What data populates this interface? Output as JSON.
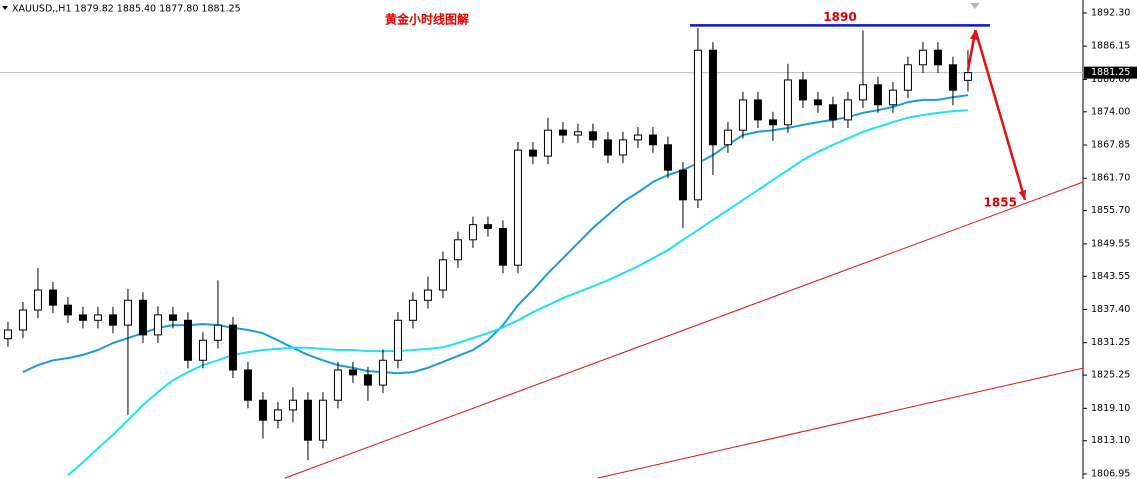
{
  "chart_data": {
    "type": "candlestick",
    "title": "黄金小时线图解",
    "header": "XAUUSD,,H1  1879.82 1885.40 1877.80 1881.25",
    "xlim": [
      -0.53,
      71.67
    ],
    "ylim": [
      1806.2,
      1894.7
    ],
    "yticks": [
      {
        "value": 1892.3,
        "label": "1892.30"
      },
      {
        "value": 1886.15,
        "label": "1886.15"
      },
      {
        "value": 1880,
        "label": "1880.00"
      },
      {
        "value": 1874,
        "label": "1874.00"
      },
      {
        "value": 1867.85,
        "label": "1867.85"
      },
      {
        "value": 1861.7,
        "label": "1861.70"
      },
      {
        "value": 1855.7,
        "label": "1855.70"
      },
      {
        "value": 1849.55,
        "label": "1849.55"
      },
      {
        "value": 1843.55,
        "label": "1843.55"
      },
      {
        "value": 1837.4,
        "label": "1837.40"
      },
      {
        "value": 1831.25,
        "label": "1831.25"
      },
      {
        "value": 1825.25,
        "label": "1825.25"
      },
      {
        "value": 1819.1,
        "label": "1819.10"
      },
      {
        "value": 1813.1,
        "label": "1813.10"
      },
      {
        "value": 1806.95,
        "label": "1806.95"
      }
    ],
    "last_price": 1881.25,
    "open": [
      1832.0,
      1833.6,
      1837.3,
      1841.0,
      1838.2,
      1836.4,
      1835.4,
      1836.4,
      1834.5,
      1839.1,
      1832.7,
      1836.4,
      1835.4,
      1828.0,
      1831.7,
      1834.5,
      1826.2,
      1820.6,
      1816.9,
      1818.8,
      1820.6,
      1813.2,
      1820.6,
      1826.2,
      1825.3,
      1823.4,
      1828.0,
      1835.4,
      1839.1,
      1841.0,
      1846.6,
      1850.3,
      1853.1,
      1852.4,
      1845.6,
      1866.9,
      1865.8,
      1870.6,
      1869.7,
      1870.3,
      1868.8,
      1866.0,
      1868.8,
      1869.7,
      1867.9,
      1863.2,
      1857.7,
      1885.4,
      1867.9,
      1870.6,
      1876.2,
      1872.5,
      1871.6,
      1879.9,
      1876.2,
      1875.3,
      1872.5,
      1876.2,
      1879.0,
      1875.3,
      1878.0,
      1882.7,
      1885.4,
      1882.7,
      1879.82
    ],
    "high": [
      1835.1,
      1838.8,
      1845.1,
      1842.5,
      1839.7,
      1837.9,
      1837.9,
      1837.9,
      1841.2,
      1840.6,
      1838.0,
      1837.9,
      1836.9,
      1833.2,
      1842.8,
      1836.0,
      1827.7,
      1822.1,
      1820.3,
      1823.0,
      1822.1,
      1822.1,
      1827.7,
      1827.7,
      1826.8,
      1830.0,
      1836.9,
      1840.6,
      1843.5,
      1848.1,
      1851.8,
      1854.6,
      1854.6,
      1853.9,
      1868.4,
      1868.4,
      1872.9,
      1872.1,
      1871.8,
      1871.8,
      1870.3,
      1870.3,
      1871.2,
      1871.2,
      1869.4,
      1864.7,
      1889.5,
      1886.9,
      1872.1,
      1877.7,
      1877.7,
      1874.0,
      1882.9,
      1881.4,
      1877.7,
      1876.8,
      1877.7,
      1889.1,
      1880.5,
      1879.5,
      1884.2,
      1886.9,
      1886.9,
      1884.2,
      1885.4
    ],
    "low": [
      1830.5,
      1832.1,
      1835.8,
      1836.7,
      1834.9,
      1833.9,
      1833.9,
      1833.0,
      1817.9,
      1831.2,
      1831.2,
      1833.9,
      1826.5,
      1826.5,
      1830.2,
      1824.7,
      1819.1,
      1813.5,
      1815.4,
      1816.5,
      1809.5,
      1811.7,
      1819.1,
      1823.8,
      1820.5,
      1821.9,
      1826.5,
      1833.9,
      1837.6,
      1839.5,
      1845.1,
      1848.8,
      1850.9,
      1844.1,
      1844.1,
      1864.3,
      1864.3,
      1868.2,
      1868.2,
      1867.3,
      1864.5,
      1864.5,
      1867.3,
      1866.4,
      1861.7,
      1852.5,
      1856.2,
      1862.3,
      1866.4,
      1869.1,
      1871.0,
      1868.6,
      1870.1,
      1874.7,
      1873.8,
      1871.0,
      1871.0,
      1874.7,
      1873.8,
      1873.8,
      1876.5,
      1881.2,
      1881.2,
      1875.2,
      1877.8
    ],
    "close": [
      1833.6,
      1837.3,
      1841.0,
      1838.2,
      1836.4,
      1835.4,
      1836.4,
      1834.5,
      1839.1,
      1832.7,
      1836.4,
      1835.4,
      1828.0,
      1831.7,
      1834.5,
      1826.2,
      1820.6,
      1816.9,
      1818.8,
      1820.6,
      1813.2,
      1820.6,
      1826.2,
      1825.3,
      1823.4,
      1828.0,
      1835.4,
      1839.1,
      1841.0,
      1846.6,
      1850.3,
      1853.1,
      1852.4,
      1845.6,
      1866.9,
      1865.8,
      1870.6,
      1869.7,
      1870.3,
      1868.8,
      1866.0,
      1868.8,
      1869.7,
      1867.9,
      1863.2,
      1857.7,
      1885.4,
      1867.9,
      1870.6,
      1876.2,
      1872.5,
      1871.6,
      1879.9,
      1876.2,
      1875.3,
      1872.5,
      1876.2,
      1879.0,
      1875.3,
      1878.0,
      1882.7,
      1885.4,
      1882.7,
      1878.0,
      1881.25
    ],
    "lines": [
      {
        "color": "#1a9be0",
        "values": [
          null,
          1825.8,
          1827.1,
          1828.0,
          1828.4,
          1829.0,
          1829.9,
          1831.2,
          1832.1,
          1833.0,
          1834.0,
          1834.5,
          1834.5,
          1834.7,
          1834.5,
          1834.0,
          1833.6,
          1833.0,
          1831.7,
          1830.3,
          1829.0,
          1828.0,
          1827.1,
          1826.6,
          1826.0,
          1825.8,
          1825.6,
          1825.8,
          1826.6,
          1827.7,
          1828.8,
          1829.9,
          1831.7,
          1834.5,
          1838.2,
          1841.0,
          1844.1,
          1846.9,
          1849.7,
          1852.5,
          1854.9,
          1857.3,
          1859.1,
          1861.0,
          1862.3,
          1863.2,
          1864.5,
          1866.0,
          1867.9,
          1869.7,
          1870.3,
          1870.6,
          1871.0,
          1871.6,
          1872.1,
          1872.5,
          1873.0,
          1873.8,
          1874.3,
          1874.9,
          1875.8,
          1876.2,
          1876.2,
          1876.7,
          1877.1
        ]
      },
      {
        "color": "#1fe0f5",
        "values": [
          null,
          null,
          null,
          null,
          1806.7,
          1809.1,
          1811.7,
          1814.2,
          1816.9,
          1819.7,
          1822.1,
          1824.3,
          1825.8,
          1827.1,
          1828.0,
          1829.0,
          1829.5,
          1829.9,
          1830.1,
          1830.3,
          1830.3,
          1830.1,
          1829.9,
          1829.9,
          1829.7,
          1829.7,
          1829.7,
          1829.9,
          1830.1,
          1830.4,
          1831.2,
          1832.1,
          1833.0,
          1834.1,
          1835.4,
          1836.9,
          1838.2,
          1839.5,
          1840.6,
          1841.7,
          1842.8,
          1844.1,
          1845.4,
          1846.9,
          1848.4,
          1850.3,
          1852.1,
          1854.0,
          1855.8,
          1857.7,
          1859.5,
          1861.4,
          1863.2,
          1865.1,
          1866.6,
          1867.9,
          1869.1,
          1870.3,
          1871.2,
          1872.1,
          1872.9,
          1873.4,
          1873.8,
          1874.1,
          1874.3
        ]
      }
    ],
    "trendlines": [
      {
        "color": "#dd1111",
        "x": [
          18.47,
          71.67
        ],
        "y": [
          1806.2,
          1861.0
        ]
      },
      {
        "color": "#dd1111",
        "x": [
          39.33,
          71.67
        ],
        "y": [
          1806.2,
          1826.55
        ]
      }
    ],
    "resistance": {
      "value": 1890,
      "x": [
        45.47,
        65.47
      ],
      "color": "#0a14d8"
    },
    "arrow": {
      "color": "#e01010",
      "x": [
        64,
        64.5,
        67.8
      ],
      "y": [
        1881.7,
        1889.1,
        1857.7
      ]
    },
    "target": {
      "value": 1855
    }
  }
}
